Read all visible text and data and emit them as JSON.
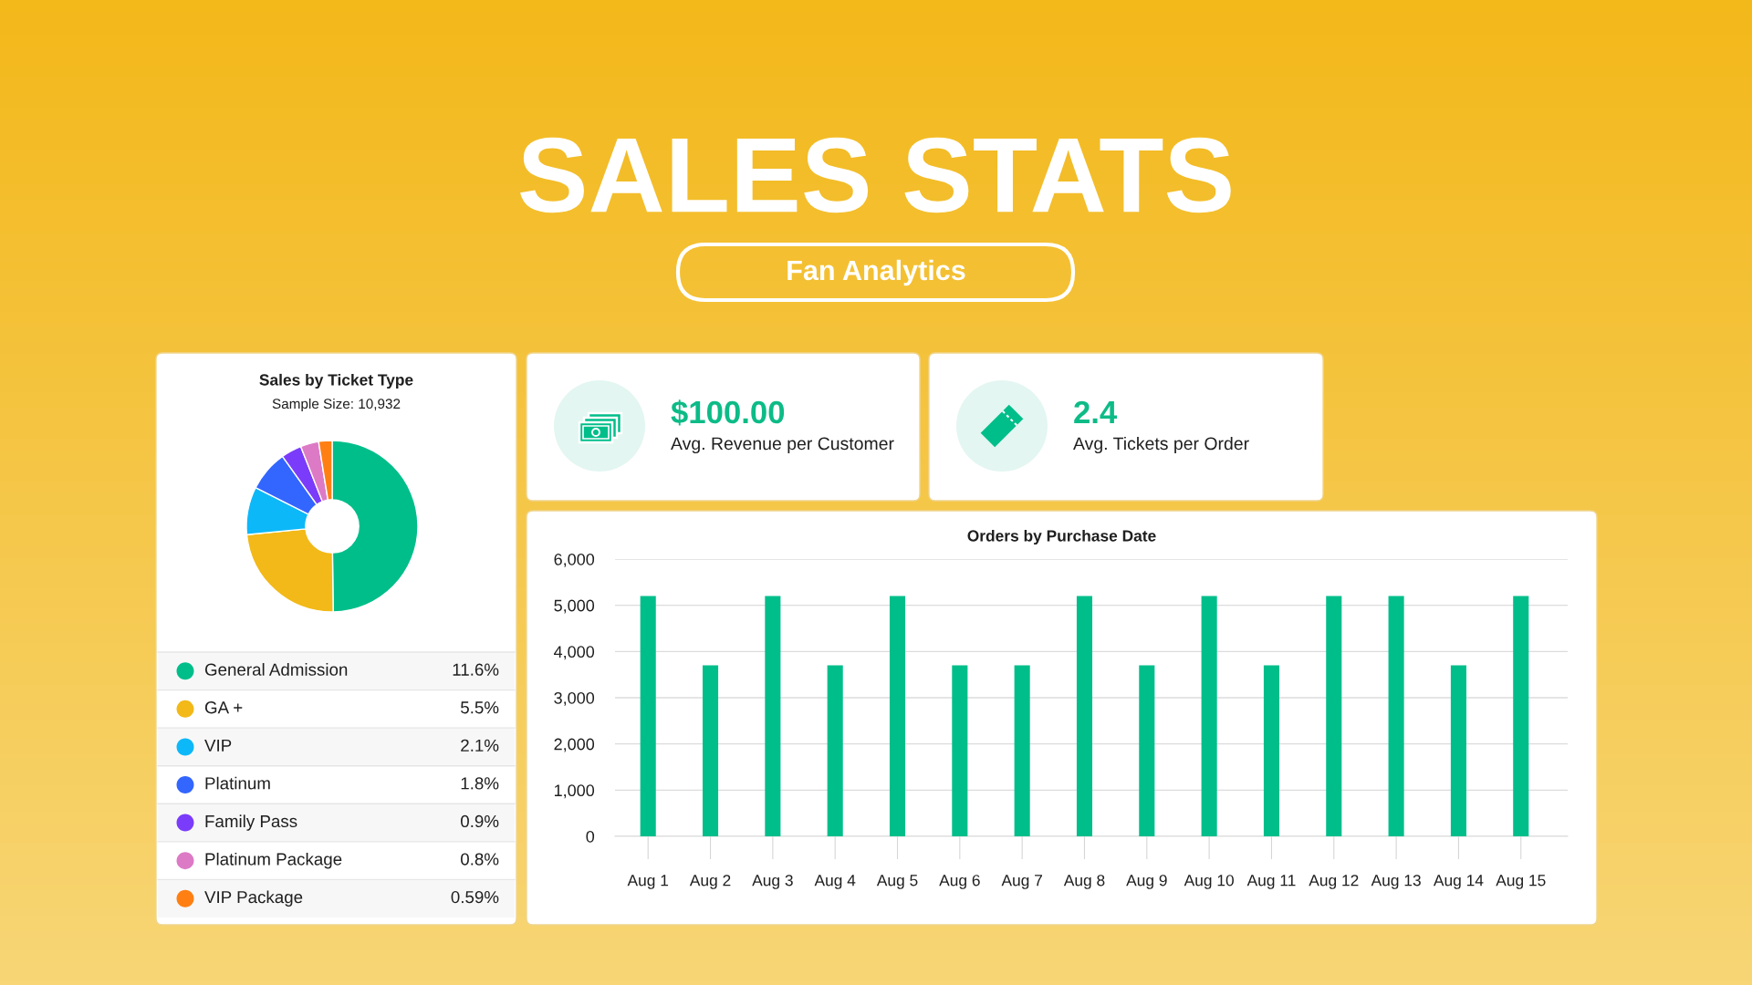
{
  "chart_data": [
    {
      "type": "other",
      "title": "SALES STATS",
      "subtitle": "Fan Analytics"
    },
    {
      "type": "donut",
      "title": "Sales by Ticket Type",
      "subtitle": "Sample Size: 10,932",
      "categories": [
        "General Admission",
        "GA +",
        "VIP",
        "Platinum",
        "Family Pass",
        "Platinum Package",
        "VIP Package"
      ],
      "values": [
        11.6,
        5.5,
        2.1,
        1.8,
        0.9,
        0.8,
        0.59
      ],
      "value_labels": [
        "11.6%",
        "5.5%",
        "2.1%",
        "1.8%",
        "0.9%",
        "0.8%",
        "0.59%"
      ],
      "colors": [
        "#00be8a",
        "#f2b918",
        "#0db8f8",
        "#3366ff",
        "#7a3cfa",
        "#dd7ac6",
        "#ff7f13"
      ],
      "legend": "bottom"
    },
    {
      "type": "other",
      "title": "$100.00",
      "subtitle": "Avg. Revenue per Customer"
    },
    {
      "type": "other",
      "title": "2.4",
      "subtitle": "Avg. Tickets per Order"
    },
    {
      "type": "bar",
      "title": "Orders by Purchase Date",
      "categories": [
        "Aug 1",
        "Aug 2",
        "Aug 3",
        "Aug 4",
        "Aug 5",
        "Aug 6",
        "Aug 7",
        "Aug 8",
        "Aug 9",
        "Aug 10",
        "Aug 11",
        "Aug 12",
        "Aug 13",
        "Aug 14",
        "Aug 15"
      ],
      "values": [
        5200,
        3700,
        5200,
        3700,
        5200,
        3700,
        3700,
        5200,
        3700,
        5200,
        3700,
        5200,
        5200,
        3700,
        5200
      ],
      "color": "#00be8a",
      "ylim": [
        0,
        6000
      ],
      "yticks": [
        0,
        {
          "value": 1000,
          "label": "1,000"
        },
        {
          "value": 2000,
          "label": "2,000"
        },
        {
          "value": 3000,
          "label": "3,000"
        },
        {
          "value": 4000,
          "label": "4,000"
        },
        {
          "value": 5000,
          "label": "5,000"
        },
        {
          "value": 6000,
          "label": "6,000"
        }
      ],
      "grid": "y"
    }
  ]
}
